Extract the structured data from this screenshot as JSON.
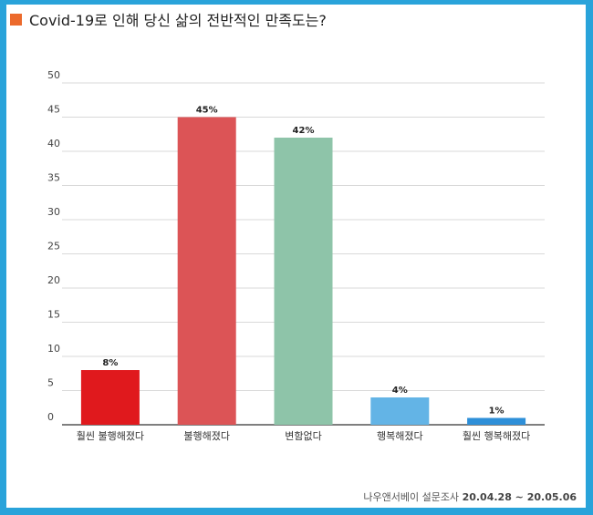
{
  "title": "Covid-19로 인해 당신 삶의 전반적인 만족도는?",
  "source_org": "나우앤서베이 설문조사",
  "source_period": "20.04.28 ~ 20.05.06",
  "chart_data": {
    "type": "bar",
    "categories": [
      "훨씬 불행해졌다",
      "불행해졌다",
      "변함없다",
      "행복해졌다",
      "훨씬 행복해졌다"
    ],
    "values": [
      8,
      45,
      42,
      4,
      1
    ],
    "value_labels": [
      "8%",
      "45%",
      "42%",
      "4%",
      "1%"
    ],
    "colors": [
      "#e0191d",
      "#dc5456",
      "#8ec4a9",
      "#63b4e6",
      "#2e8fd8"
    ],
    "ylim": [
      0,
      50
    ],
    "yticks": [
      0,
      5,
      10,
      15,
      20,
      25,
      30,
      35,
      40,
      45,
      50
    ],
    "grid": true,
    "xlabel": "",
    "ylabel": ""
  }
}
